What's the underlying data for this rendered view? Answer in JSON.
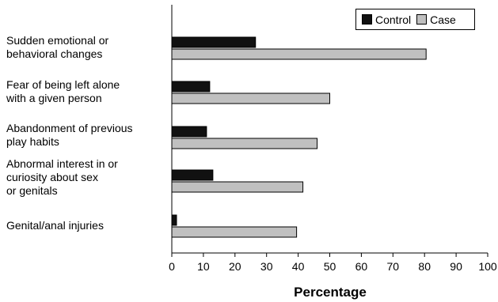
{
  "chart_data": {
    "type": "bar",
    "orientation": "horizontal",
    "title": "",
    "xlabel": "Percentage",
    "ylabel": "",
    "xlim": [
      0,
      100
    ],
    "xticks": [
      "0",
      "10",
      "20",
      "30",
      "40",
      "50",
      "60",
      "70",
      "80",
      "90",
      "100"
    ],
    "grid": false,
    "legend_position": "top-right",
    "categories": [
      "Sudden emotional or\nbehavioral changes",
      "Fear of being left alone\nwith a given person",
      "Abandonment of previous\nplay habits",
      "Abnormal interest in or\ncuriosity about sex\nor genitals",
      "Genital/anal injuries"
    ],
    "series": [
      {
        "name": "Control",
        "color": "#111111",
        "values": [
          26.5,
          12,
          11,
          13,
          1.5
        ]
      },
      {
        "name": "Case",
        "color": "#c0c0c0",
        "values": [
          80.5,
          50,
          46,
          41.5,
          39.5
        ]
      }
    ]
  }
}
